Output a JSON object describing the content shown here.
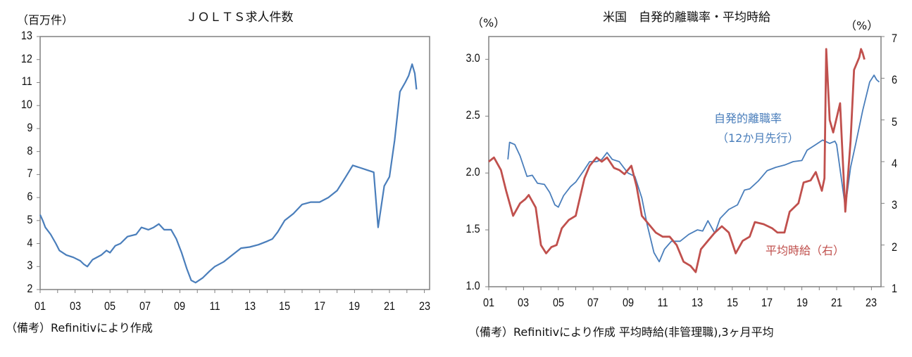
{
  "chart_data": [
    {
      "type": "line",
      "title": "ＪＯＬＴＳ求人件数",
      "ylabel": "（百万件）",
      "ylim": [
        2,
        13
      ],
      "yticks": [
        "2",
        "3",
        "4",
        "5",
        "6",
        "7",
        "8",
        "9",
        "10",
        "11",
        "12",
        "13"
      ],
      "xticks": [
        "01",
        "03",
        "05",
        "07",
        "09",
        "11",
        "13",
        "15",
        "17",
        "19",
        "21",
        "23"
      ],
      "note": "（備考）Refinitivにより作成",
      "grid": false,
      "color": "#4a7ebb",
      "series": [
        {
          "points": [
            [
              2001.0,
              5.25
            ],
            [
              2001.15,
              5.0
            ],
            [
              2001.3,
              4.7
            ],
            [
              2001.6,
              4.4
            ],
            [
              2001.9,
              4.0
            ],
            [
              2002.1,
              3.7
            ],
            [
              2002.5,
              3.5
            ],
            [
              2002.9,
              3.4
            ],
            [
              2003.3,
              3.25
            ],
            [
              2003.5,
              3.1
            ],
            [
              2003.7,
              3.0
            ],
            [
              2004.0,
              3.3
            ],
            [
              2004.5,
              3.5
            ],
            [
              2004.8,
              3.7
            ],
            [
              2005.0,
              3.6
            ],
            [
              2005.3,
              3.9
            ],
            [
              2005.6,
              4.0
            ],
            [
              2006.0,
              4.3
            ],
            [
              2006.5,
              4.4
            ],
            [
              2006.8,
              4.7
            ],
            [
              2007.2,
              4.6
            ],
            [
              2007.5,
              4.7
            ],
            [
              2007.8,
              4.85
            ],
            [
              2008.1,
              4.6
            ],
            [
              2008.5,
              4.6
            ],
            [
              2008.8,
              4.2
            ],
            [
              2009.1,
              3.6
            ],
            [
              2009.4,
              2.9
            ],
            [
              2009.65,
              2.4
            ],
            [
              2009.9,
              2.3
            ],
            [
              2010.3,
              2.5
            ],
            [
              2010.7,
              2.8
            ],
            [
              2011.0,
              3.0
            ],
            [
              2011.5,
              3.2
            ],
            [
              2012.0,
              3.5
            ],
            [
              2012.5,
              3.8
            ],
            [
              2013.0,
              3.85
            ],
            [
              2013.5,
              3.95
            ],
            [
              2014.0,
              4.1
            ],
            [
              2014.3,
              4.2
            ],
            [
              2014.6,
              4.5
            ],
            [
              2015.0,
              5.0
            ],
            [
              2015.5,
              5.3
            ],
            [
              2016.0,
              5.7
            ],
            [
              2016.5,
              5.8
            ],
            [
              2017.0,
              5.8
            ],
            [
              2017.5,
              6.0
            ],
            [
              2018.0,
              6.3
            ],
            [
              2018.5,
              6.9
            ],
            [
              2018.9,
              7.4
            ],
            [
              2019.3,
              7.3
            ],
            [
              2019.7,
              7.2
            ],
            [
              2020.1,
              7.1
            ],
            [
              2020.35,
              4.7
            ],
            [
              2020.7,
              6.5
            ],
            [
              2021.0,
              6.9
            ],
            [
              2021.3,
              8.5
            ],
            [
              2021.6,
              10.6
            ],
            [
              2021.9,
              11.0
            ],
            [
              2022.1,
              11.3
            ],
            [
              2022.3,
              11.8
            ],
            [
              2022.45,
              11.4
            ],
            [
              2022.55,
              10.7
            ]
          ]
        }
      ]
    },
    {
      "type": "line",
      "title": "米国　自発的離職率・平均時給",
      "ylabel_left": "（%）",
      "ylabel_right": "（%）",
      "ylim_left": [
        1.0,
        3.2
      ],
      "ylim_right": [
        1,
        7
      ],
      "yticks_left": [
        "1.0",
        "1.5",
        "2.0",
        "2.5",
        "3.0"
      ],
      "yticks_right": [
        "1",
        "2",
        "3",
        "4",
        "5",
        "6",
        "7"
      ],
      "xticks": [
        "01",
        "03",
        "05",
        "07",
        "09",
        "11",
        "13",
        "15",
        "17",
        "19",
        "21",
        "23"
      ],
      "note": "（備考）Refinitivにより作成 平均時給(非管理職),3ヶ月平均",
      "grid": false,
      "series": [
        {
          "name": "自発的離職率",
          "name2": "（12か月先行）",
          "axis": "left",
          "color": "#4a7ebb",
          "points": [
            [
              2002.1,
              2.12
            ],
            [
              2002.2,
              2.27
            ],
            [
              2002.5,
              2.25
            ],
            [
              2002.8,
              2.15
            ],
            [
              2003.2,
              1.97
            ],
            [
              2003.5,
              1.98
            ],
            [
              2003.8,
              1.91
            ],
            [
              2004.2,
              1.9
            ],
            [
              2004.5,
              1.83
            ],
            [
              2004.8,
              1.72
            ],
            [
              2005.0,
              1.7
            ],
            [
              2005.3,
              1.8
            ],
            [
              2005.7,
              1.88
            ],
            [
              2006.0,
              1.92
            ],
            [
              2006.5,
              2.03
            ],
            [
              2006.8,
              2.1
            ],
            [
              2007.2,
              2.1
            ],
            [
              2007.5,
              2.12
            ],
            [
              2007.8,
              2.18
            ],
            [
              2008.1,
              2.12
            ],
            [
              2008.5,
              2.1
            ],
            [
              2009.0,
              2.0
            ],
            [
              2009.4,
              1.97
            ],
            [
              2009.8,
              1.78
            ],
            [
              2010.1,
              1.55
            ],
            [
              2010.5,
              1.3
            ],
            [
              2010.8,
              1.22
            ],
            [
              2011.1,
              1.33
            ],
            [
              2011.5,
              1.4
            ],
            [
              2012.0,
              1.4
            ],
            [
              2012.5,
              1.46
            ],
            [
              2013.0,
              1.5
            ],
            [
              2013.3,
              1.49
            ],
            [
              2013.6,
              1.58
            ],
            [
              2014.0,
              1.47
            ],
            [
              2014.3,
              1.6
            ],
            [
              2014.8,
              1.68
            ],
            [
              2015.3,
              1.72
            ],
            [
              2015.7,
              1.85
            ],
            [
              2016.0,
              1.86
            ],
            [
              2016.5,
              1.93
            ],
            [
              2017.0,
              2.02
            ],
            [
              2017.5,
              2.05
            ],
            [
              2018.0,
              2.07
            ],
            [
              2018.5,
              2.1
            ],
            [
              2019.0,
              2.11
            ],
            [
              2019.3,
              2.2
            ],
            [
              2019.8,
              2.25
            ],
            [
              2020.2,
              2.29
            ],
            [
              2020.6,
              2.26
            ],
            [
              2020.9,
              2.28
            ],
            [
              2021.0,
              2.25
            ],
            [
              2021.5,
              1.7
            ],
            [
              2021.8,
              2.05
            ],
            [
              2022.1,
              2.26
            ],
            [
              2022.5,
              2.55
            ],
            [
              2022.9,
              2.8
            ],
            [
              2023.15,
              2.86
            ],
            [
              2023.3,
              2.82
            ],
            [
              2023.45,
              2.8
            ]
          ]
        },
        {
          "name": "平均時給（右）",
          "axis": "right",
          "color": "#c0504d",
          "points": [
            [
              2001.0,
              4.0
            ],
            [
              2001.3,
              4.1
            ],
            [
              2001.7,
              3.8
            ],
            [
              2002.0,
              3.3
            ],
            [
              2002.4,
              2.7
            ],
            [
              2002.8,
              3.0
            ],
            [
              2003.1,
              3.1
            ],
            [
              2003.3,
              3.2
            ],
            [
              2003.7,
              2.9
            ],
            [
              2004.0,
              2.0
            ],
            [
              2004.3,
              1.8
            ],
            [
              2004.6,
              1.95
            ],
            [
              2004.9,
              2.0
            ],
            [
              2005.2,
              2.4
            ],
            [
              2005.6,
              2.6
            ],
            [
              2006.0,
              2.7
            ],
            [
              2006.5,
              3.6
            ],
            [
              2006.8,
              3.9
            ],
            [
              2007.2,
              4.1
            ],
            [
              2007.5,
              4.0
            ],
            [
              2007.8,
              4.1
            ],
            [
              2008.2,
              3.85
            ],
            [
              2008.5,
              3.8
            ],
            [
              2008.8,
              3.7
            ],
            [
              2009.2,
              3.9
            ],
            [
              2009.5,
              3.4
            ],
            [
              2009.8,
              2.7
            ],
            [
              2010.2,
              2.5
            ],
            [
              2010.6,
              2.3
            ],
            [
              2011.0,
              2.2
            ],
            [
              2011.4,
              2.2
            ],
            [
              2011.8,
              2.0
            ],
            [
              2012.2,
              1.6
            ],
            [
              2012.6,
              1.5
            ],
            [
              2012.9,
              1.35
            ],
            [
              2013.2,
              1.9
            ],
            [
              2013.6,
              2.1
            ],
            [
              2014.0,
              2.3
            ],
            [
              2014.4,
              2.45
            ],
            [
              2014.8,
              2.3
            ],
            [
              2015.2,
              1.8
            ],
            [
              2015.6,
              2.1
            ],
            [
              2016.0,
              2.2
            ],
            [
              2016.3,
              2.55
            ],
            [
              2016.8,
              2.5
            ],
            [
              2017.3,
              2.4
            ],
            [
              2017.6,
              2.3
            ],
            [
              2018.0,
              2.3
            ],
            [
              2018.3,
              2.8
            ],
            [
              2018.8,
              3.0
            ],
            [
              2019.1,
              3.5
            ],
            [
              2019.5,
              3.55
            ],
            [
              2019.8,
              3.75
            ],
            [
              2020.15,
              3.3
            ],
            [
              2020.3,
              3.6
            ],
            [
              2020.4,
              6.7
            ],
            [
              2020.6,
              5.0
            ],
            [
              2020.8,
              4.7
            ],
            [
              2021.2,
              5.4
            ],
            [
              2021.3,
              4.5
            ],
            [
              2021.5,
              2.8
            ],
            [
              2021.8,
              4.5
            ],
            [
              2022.0,
              6.2
            ],
            [
              2022.3,
              6.5
            ],
            [
              2022.4,
              6.7
            ],
            [
              2022.5,
              6.6
            ],
            [
              2022.6,
              6.45
            ]
          ]
        }
      ]
    }
  ]
}
